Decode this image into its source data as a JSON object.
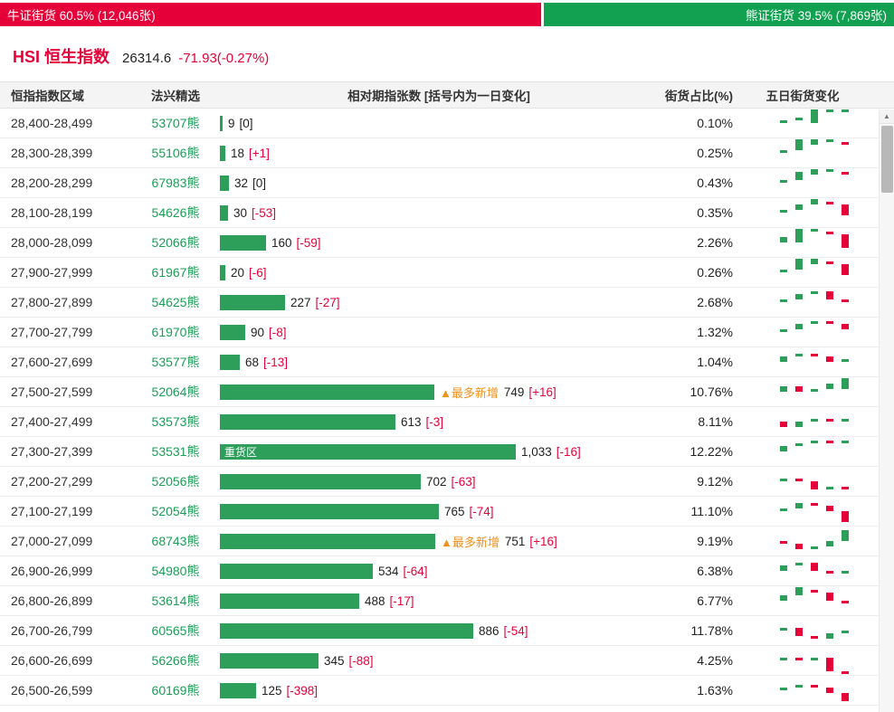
{
  "colors": {
    "bull_red": "#E60039",
    "bear_green": "#12A150",
    "bar_green": "#2E9E5B",
    "change_red": "#E60039",
    "tag_orange": "#F39019",
    "code_green": "#1A9E57"
  },
  "icons": {
    "scroll_up_arrow": "▲"
  },
  "top_bar": {
    "bull_text": "牛证街货 60.5% (12,046张)",
    "bull_pct": 60.5,
    "bear_text": "熊证街货 39.5% (7,869张)",
    "bear_pct": 39.5
  },
  "title": {
    "name": "HSI 恒生指数",
    "price": "26314.6",
    "change": "-71.93(-0.27%)"
  },
  "table": {
    "headers": [
      "恒指指数区域",
      "法兴精选",
      "相对期指张数 [括号内为一日变化]",
      "街货占比(%)",
      "五日街货变化"
    ],
    "rows": [
      {
        "range": "28,400-28,499",
        "code": "53707熊",
        "value": 9,
        "value_text": "9",
        "change": "[0]",
        "pct": "0.10%",
        "tag": "",
        "badge": "",
        "spark": [
          0.5,
          0.5,
          2.5,
          0.5,
          0.5
        ]
      },
      {
        "range": "28,300-28,399",
        "code": "55106熊",
        "value": 18,
        "value_text": "18",
        "change": "[+1]",
        "pct": "0.25%",
        "tag": "",
        "badge": "",
        "spark": [
          0.5,
          2,
          1,
          0.5,
          -0.5
        ]
      },
      {
        "range": "28,200-28,299",
        "code": "67983熊",
        "value": 32,
        "value_text": "32",
        "change": "[0]",
        "pct": "0.43%",
        "tag": "",
        "badge": "",
        "spark": [
          0.5,
          1.5,
          1,
          0.5,
          -0.5
        ]
      },
      {
        "range": "28,100-28,199",
        "code": "54626熊",
        "value": 30,
        "value_text": "30",
        "change": "[-53]",
        "pct": "0.35%",
        "tag": "",
        "badge": "",
        "spark": [
          0.5,
          1,
          1,
          -0.5,
          -2
        ]
      },
      {
        "range": "28,000-28,099",
        "code": "52066熊",
        "value": 160,
        "value_text": "160",
        "change": "[-59]",
        "pct": "2.26%",
        "tag": "",
        "badge": "",
        "spark": [
          1,
          2.5,
          0.5,
          -0.5,
          -2.5
        ]
      },
      {
        "range": "27,900-27,999",
        "code": "61967熊",
        "value": 20,
        "value_text": "20",
        "change": "[-6]",
        "pct": "0.26%",
        "tag": "",
        "badge": "",
        "spark": [
          0.5,
          2,
          1,
          -0.5,
          -2
        ]
      },
      {
        "range": "27,800-27,899",
        "code": "54625熊",
        "value": 227,
        "value_text": "227",
        "change": "[-27]",
        "pct": "2.68%",
        "tag": "",
        "badge": "",
        "spark": [
          0.5,
          1,
          0.5,
          -1.5,
          -0.5
        ]
      },
      {
        "range": "27,700-27,799",
        "code": "61970熊",
        "value": 90,
        "value_text": "90",
        "change": "[-8]",
        "pct": "1.32%",
        "tag": "",
        "badge": "",
        "spark": [
          0.5,
          1,
          0.5,
          -0.5,
          -1
        ]
      },
      {
        "range": "27,600-27,699",
        "code": "53577熊",
        "value": 68,
        "value_text": "68",
        "change": "[-13]",
        "pct": "1.04%",
        "tag": "",
        "badge": "",
        "spark": [
          1,
          0.5,
          -0.5,
          -1,
          0.5
        ]
      },
      {
        "range": "27,500-27,599",
        "code": "52064熊",
        "value": 749,
        "value_text": "749",
        "change": "[+16]",
        "pct": "10.76%",
        "tag": "▲最多新增",
        "badge": "",
        "spark": [
          1,
          -1,
          0.5,
          1,
          2
        ]
      },
      {
        "range": "27,400-27,499",
        "code": "53573熊",
        "value": 613,
        "value_text": "613",
        "change": "[-3]",
        "pct": "8.11%",
        "tag": "",
        "badge": "",
        "spark": [
          -1,
          1,
          0.5,
          -0.5,
          0.5
        ]
      },
      {
        "range": "27,300-27,399",
        "code": "53531熊",
        "value": 1033,
        "value_text": "1,033",
        "change": "[-16]",
        "pct": "12.22%",
        "tag": "",
        "badge": "重货区",
        "spark": [
          1,
          0.5,
          0.5,
          -0.5,
          0.5
        ]
      },
      {
        "range": "27,200-27,299",
        "code": "52056熊",
        "value": 702,
        "value_text": "702",
        "change": "[-63]",
        "pct": "9.12%",
        "tag": "",
        "badge": "",
        "spark": [
          0.5,
          -0.5,
          -1.5,
          0.5,
          -0.5
        ]
      },
      {
        "range": "27,100-27,199",
        "code": "52054熊",
        "value": 765,
        "value_text": "765",
        "change": "[-74]",
        "pct": "11.10%",
        "tag": "",
        "badge": "",
        "spark": [
          0.5,
          1,
          -0.5,
          -1,
          -2
        ]
      },
      {
        "range": "27,000-27,099",
        "code": "68743熊",
        "value": 751,
        "value_text": "751",
        "change": "[+16]",
        "pct": "9.19%",
        "tag": "▲最多新增",
        "badge": "",
        "spark": [
          -0.5,
          -1,
          0.5,
          1,
          2
        ]
      },
      {
        "range": "26,900-26,999",
        "code": "54980熊",
        "value": 534,
        "value_text": "534",
        "change": "[-64]",
        "pct": "6.38%",
        "tag": "",
        "badge": "",
        "spark": [
          1,
          0.5,
          -1.5,
          -0.5,
          0.5
        ]
      },
      {
        "range": "26,800-26,899",
        "code": "53614熊",
        "value": 488,
        "value_text": "488",
        "change": "[-17]",
        "pct": "6.77%",
        "tag": "",
        "badge": "",
        "spark": [
          1,
          1.5,
          -0.5,
          -1.5,
          -0.5
        ]
      },
      {
        "range": "26,700-26,799",
        "code": "60565熊",
        "value": 886,
        "value_text": "886",
        "change": "[-54]",
        "pct": "11.78%",
        "tag": "",
        "badge": "",
        "spark": [
          0.5,
          -1.5,
          -0.5,
          1,
          0.5
        ]
      },
      {
        "range": "26,600-26,699",
        "code": "56266熊",
        "value": 345,
        "value_text": "345",
        "change": "[-88]",
        "pct": "4.25%",
        "tag": "",
        "badge": "",
        "spark": [
          0.5,
          -0.5,
          0.5,
          -2.5,
          -0.5
        ]
      },
      {
        "range": "26,500-26,599",
        "code": "60169熊",
        "value": 125,
        "value_text": "125",
        "change": "[-398]",
        "pct": "1.63%",
        "tag": "",
        "badge": "",
        "spark": [
          0.5,
          0.5,
          -0.5,
          -1,
          -1.5
        ]
      }
    ]
  }
}
